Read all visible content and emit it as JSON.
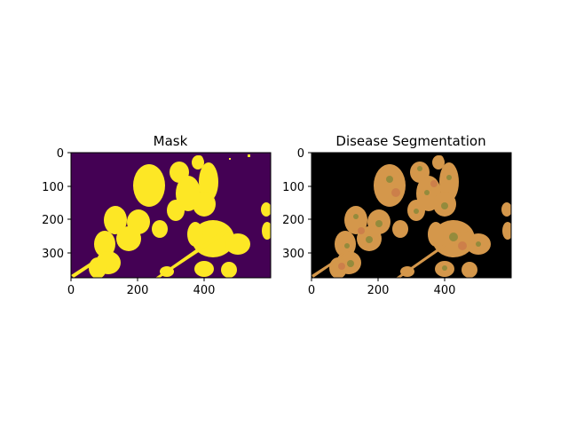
{
  "panels": [
    {
      "title": "Mask",
      "x_ticks": [
        "0",
        "200",
        "400"
      ],
      "y_ticks": [
        "0",
        "100",
        "200",
        "300"
      ],
      "image": {
        "background": "#440154",
        "foreground": "#fde725"
      }
    },
    {
      "title": "Disease Segmentation",
      "x_ticks": [
        "0",
        "200",
        "400"
      ],
      "y_ticks": [
        "0",
        "100",
        "200",
        "300"
      ],
      "image": {
        "background": "#000000",
        "leaf_color": "#e0a050",
        "lesion_color": "#8a8a3a"
      }
    }
  ]
}
